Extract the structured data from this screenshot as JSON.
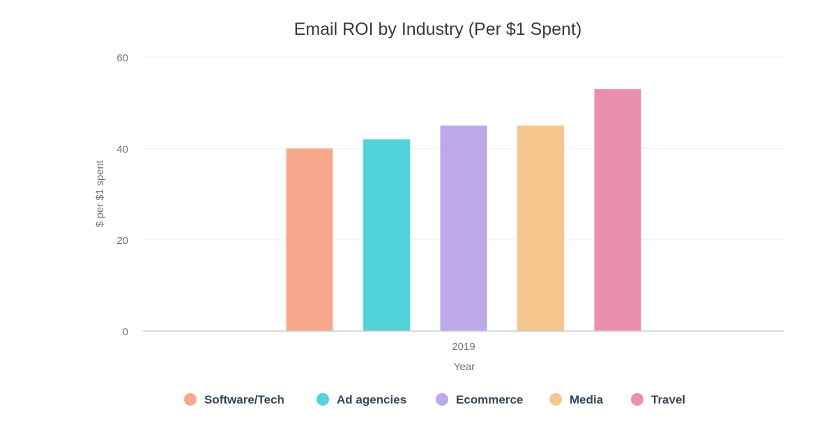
{
  "chart_data": {
    "type": "bar",
    "title": "Email ROI by Industry (Per $1 Spent)",
    "xlabel": "Year",
    "ylabel": "$ per $1 spent",
    "categories": [
      "2019"
    ],
    "ylim": [
      0,
      60
    ],
    "yticks": [
      0,
      20,
      40,
      60
    ],
    "grid": true,
    "legend_position": "bottom",
    "series": [
      {
        "name": "Software/Tech",
        "values": [
          40
        ],
        "color": "#f8a98d"
      },
      {
        "name": "Ad agencies",
        "values": [
          42
        ],
        "color": "#51d3d9"
      },
      {
        "name": "Ecommerce",
        "values": [
          45
        ],
        "color": "#bda8e8"
      },
      {
        "name": "Media",
        "values": [
          45
        ],
        "color": "#f5c68e"
      },
      {
        "name": "Travel",
        "values": [
          53
        ],
        "color": "#ea90ad"
      }
    ]
  }
}
